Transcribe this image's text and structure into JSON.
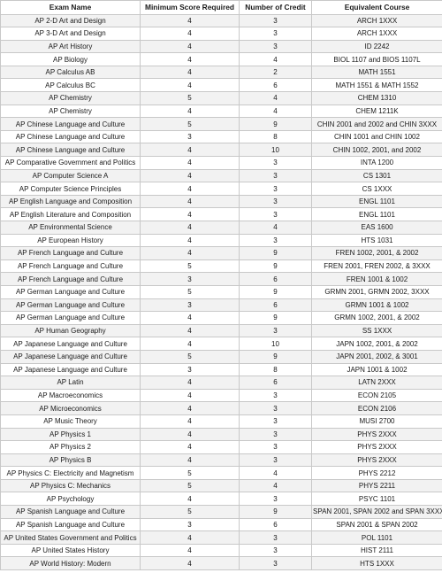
{
  "table": {
    "headers": [
      "Exam Name",
      "Minimum Score Required",
      "Number of Credit",
      "Equivalent Course"
    ],
    "rows": [
      [
        "AP 2-D Art and Design",
        "4",
        "3",
        "ARCH 1XXX"
      ],
      [
        "AP 3-D Art and Design",
        "4",
        "3",
        "ARCH 1XXX"
      ],
      [
        "AP Art History",
        "4",
        "3",
        "ID 2242"
      ],
      [
        "AP Biology",
        "4",
        "4",
        "BIOL 1107 and BIOS 1107L"
      ],
      [
        "AP Calculus AB",
        "4",
        "2",
        "MATH 1551"
      ],
      [
        "AP Calculus BC",
        "4",
        "6",
        "MATH 1551 & MATH 1552"
      ],
      [
        "AP Chemistry",
        "5",
        "4",
        "CHEM 1310"
      ],
      [
        "AP Chemistry",
        "4",
        "4",
        "CHEM 1211K"
      ],
      [
        "AP Chinese Language and Culture",
        "5",
        "9",
        "CHIN 2001 and 2002 and CHIN 3XXX"
      ],
      [
        "AP Chinese Language and Culture",
        "3",
        "8",
        "CHIN 1001 and CHIN 1002"
      ],
      [
        "AP Chinese Language and Culture",
        "4",
        "10",
        "CHIN 1002, 2001, and 2002"
      ],
      [
        "AP Comparative Government and Politics",
        "4",
        "3",
        "INTA 1200"
      ],
      [
        "AP Computer Science A",
        "4",
        "3",
        "CS 1301"
      ],
      [
        "AP Computer Science Principles",
        "4",
        "3",
        "CS 1XXX"
      ],
      [
        "AP English Language and Composition",
        "4",
        "3",
        "ENGL 1101"
      ],
      [
        "AP English Literature and Composition",
        "4",
        "3",
        "ENGL 1101"
      ],
      [
        "AP Environmental Science",
        "4",
        "4",
        "EAS 1600"
      ],
      [
        "AP European History",
        "4",
        "3",
        "HTS 1031"
      ],
      [
        "AP French Language and Culture",
        "4",
        "9",
        "FREN 1002, 2001, & 2002"
      ],
      [
        "AP French Language and Culture",
        "5",
        "9",
        "FREN 2001, FREN 2002, & 3XXX"
      ],
      [
        "AP French Language and Culture",
        "3",
        "6",
        "FREN 1001 & 1002"
      ],
      [
        "AP German Language and Culture",
        "5",
        "9",
        "GRMN 2001, GRMN 2002, 3XXX"
      ],
      [
        "AP German Language and Culture",
        "3",
        "6",
        "GRMN 1001 & 1002"
      ],
      [
        "AP German Language and Culture",
        "4",
        "9",
        "GRMN 1002, 2001, & 2002"
      ],
      [
        "AP Human Geography",
        "4",
        "3",
        "SS 1XXX"
      ],
      [
        "AP Japanese Language and Culture",
        "4",
        "10",
        "JAPN 1002, 2001, & 2002"
      ],
      [
        "AP Japanese Language and Culture",
        "5",
        "9",
        "JAPN 2001, 2002, & 3001"
      ],
      [
        "AP Japanese Language and Culture",
        "3",
        "8",
        "JAPN 1001 & 1002"
      ],
      [
        "AP Latin",
        "4",
        "6",
        "LATN 2XXX"
      ],
      [
        "AP Macroeconomics",
        "4",
        "3",
        "ECON 2105"
      ],
      [
        "AP Microeconomics",
        "4",
        "3",
        "ECON 2106"
      ],
      [
        "AP Music Theory",
        "4",
        "3",
        "MUSI 2700"
      ],
      [
        "AP Physics 1",
        "4",
        "3",
        "PHYS 2XXX"
      ],
      [
        "AP Physics 2",
        "4",
        "3",
        "PHYS 2XXX"
      ],
      [
        "AP Physics B",
        "4",
        "3",
        "PHYS 2XXX"
      ],
      [
        "AP Physics C: Electricity and Magnetism",
        "5",
        "4",
        "PHYS 2212"
      ],
      [
        "AP Physics C: Mechanics",
        "5",
        "4",
        "PHYS 2211"
      ],
      [
        "AP Psychology",
        "4",
        "3",
        "PSYC 1101"
      ],
      [
        "AP Spanish Language and Culture",
        "5",
        "9",
        "SPAN 2001, SPAN 2002 and SPAN 3XXX"
      ],
      [
        "AP Spanish Language and Culture",
        "3",
        "6",
        "SPAN 2001 & SPAN 2002"
      ],
      [
        "AP United States Government and Politics",
        "4",
        "3",
        "POL 1101"
      ],
      [
        "AP United States History",
        "4",
        "3",
        "HIST 2111"
      ],
      [
        "AP World History: Modern",
        "4",
        "3",
        "HTS 1XXX"
      ]
    ]
  }
}
